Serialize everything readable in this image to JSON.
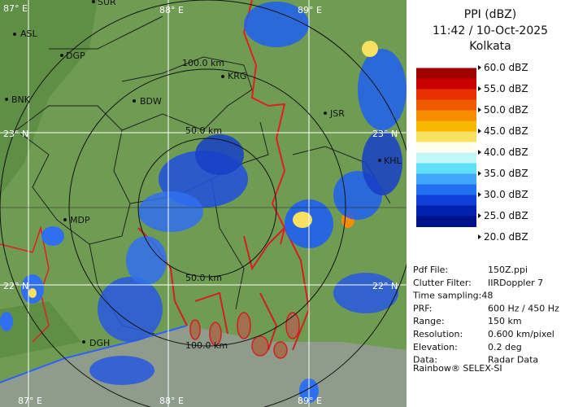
{
  "header": {
    "product": "PPI (dBZ)",
    "time": "11:42 / 10-Oct-2025",
    "station": "Kolkata"
  },
  "legend": {
    "ticks": [
      {
        "value": 60,
        "label": "60.0 dBZ"
      },
      {
        "value": 55,
        "label": "55.0 dBZ"
      },
      {
        "value": 50,
        "label": "50.0 dBZ"
      },
      {
        "value": 45,
        "label": "45.0 dBZ"
      },
      {
        "value": 40,
        "label": "40.0 dBZ"
      },
      {
        "value": 35,
        "label": "35.0 dBZ"
      },
      {
        "value": 30,
        "label": "30.0 dBZ"
      },
      {
        "value": 25,
        "label": "25.0 dBZ"
      },
      {
        "value": 20,
        "label": "20.0 dBZ"
      }
    ],
    "colors": [
      "#ffffff",
      "#a00000",
      "#c80000",
      "#e83000",
      "#f05a00",
      "#f88c00",
      "#f8b800",
      "#f8e060",
      "#fffff0",
      "#c0f8f8",
      "#60e0f8",
      "#40a8f8",
      "#2070f0",
      "#1040d8",
      "#0020b0",
      "#001088"
    ]
  },
  "info": {
    "rows": [
      [
        "Pdf File:",
        "150Z.ppi"
      ],
      [
        "Clutter Filter:",
        "IIRDoppler 7"
      ],
      [
        "Time sampling:48",
        null
      ],
      [
        "PRF:",
        "600 Hz / 450 Hz"
      ],
      [
        "Range:",
        "150 km"
      ],
      [
        "Resolution:",
        "0.600 km/pixel"
      ],
      [
        "Elevation:",
        "0.2 deg"
      ],
      [
        "Data:",
        "Radar Data"
      ]
    ],
    "footer": "Rainbow® SELEX-SI"
  },
  "map": {
    "grid_labels": [
      "87° E",
      "88° E",
      "89° E",
      "87° E",
      "88° E",
      "89° E",
      "23° N",
      "23° N",
      "22° N",
      "22° N"
    ],
    "range_labels": [
      "100.0 km",
      "50.0 km",
      "50.0 km",
      "100.0 km"
    ],
    "places": [
      "SUR",
      "ASL",
      "DGP",
      "BNK",
      "BDW",
      "KRG",
      "JSR",
      "KHL",
      "MDP",
      "DGH"
    ]
  }
}
